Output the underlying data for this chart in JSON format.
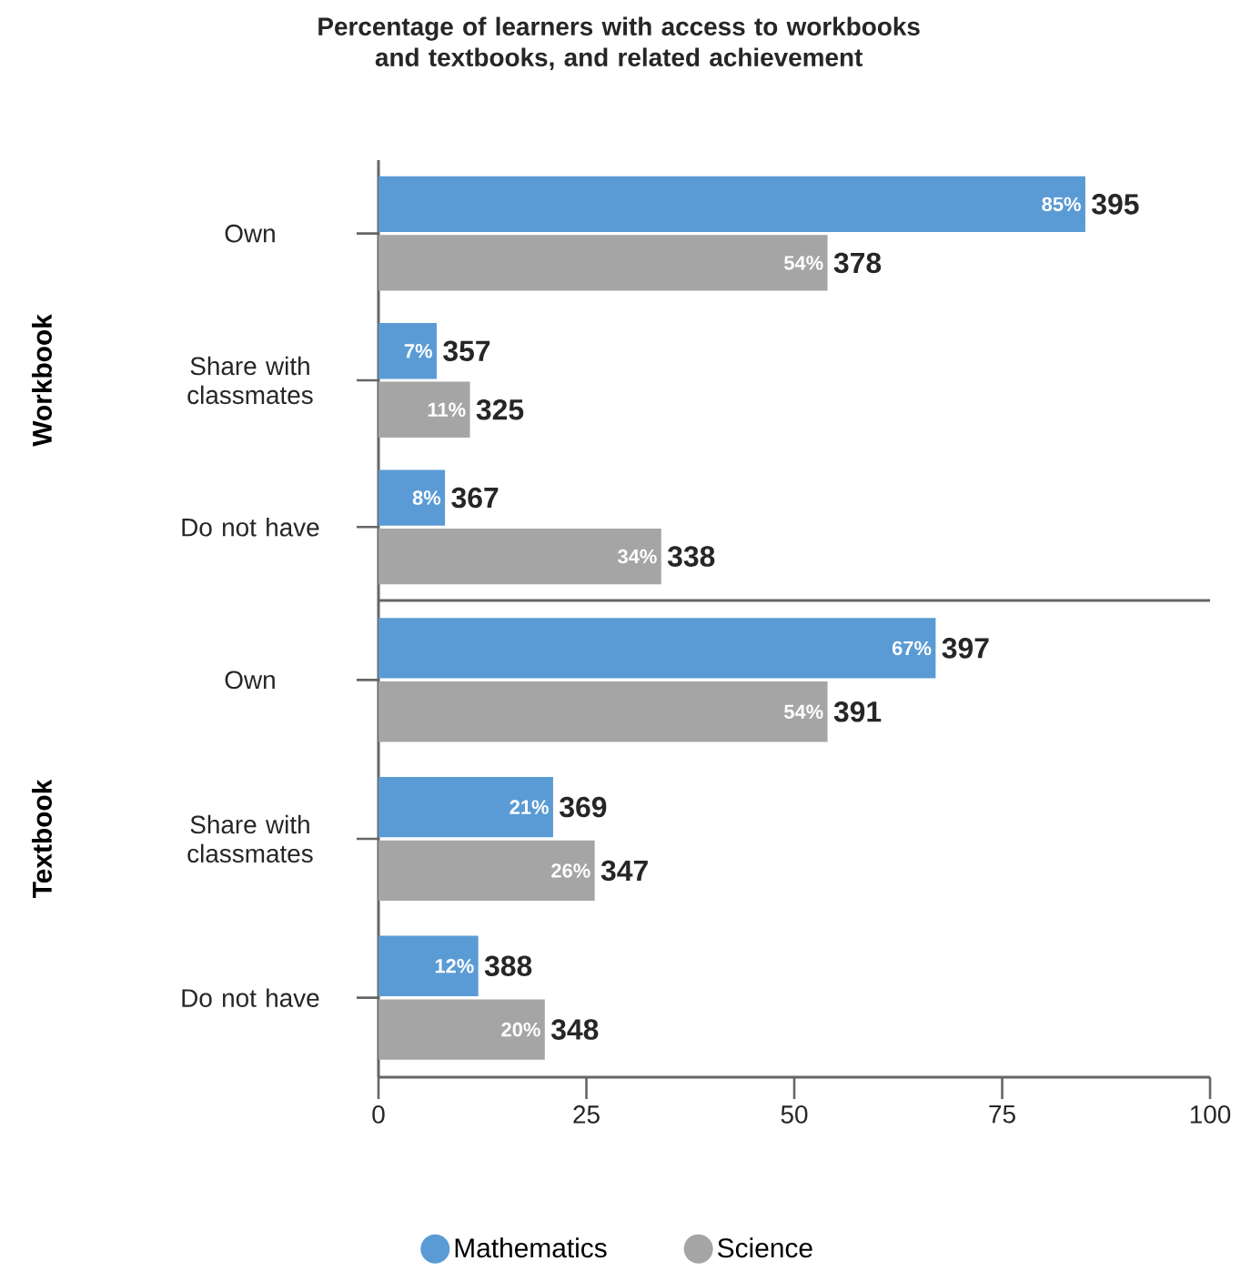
{
  "chart_data": [
    {
      "type": "bar",
      "orientation": "horizontal",
      "title": "Percentage of learners with access to workbooks and textbooks, and related achievement",
      "ylabel": "Workbook",
      "categories": [
        "Own",
        "Share with classmates",
        "Do not have"
      ],
      "xlim": [
        0,
        100
      ],
      "tick_labels": "y",
      "series": [
        {
          "color": "#5b9bd5",
          "values": [
            85,
            7,
            8
          ],
          "value_labels": [
            "85%",
            "7%",
            "8%"
          ]
        },
        {
          "color": "#a5a5a5",
          "values": [
            54,
            11,
            34
          ],
          "value_labels": [
            "54%",
            "11%",
            "34%"
          ]
        }
      ],
      "annotations": [
        {
          "text": "395",
          "x": 85,
          "y": "Own"
        },
        {
          "text": "378",
          "x": 54,
          "y": "Own"
        },
        {
          "text": "357",
          "x": 7,
          "y": "Share with classmates"
        },
        {
          "text": "325",
          "x": 11,
          "y": "Share with classmates"
        },
        {
          "text": "367",
          "x": 8,
          "y": "Do not have"
        },
        {
          "text": "338",
          "x": 34,
          "y": "Do not have"
        }
      ]
    },
    {
      "type": "bar",
      "orientation": "horizontal",
      "ylabel": "Textbook",
      "categories": [
        "Own",
        "Share with classmates",
        "Do not have"
      ],
      "xlim": [
        0,
        100
      ],
      "xticks": [
        0,
        25,
        50,
        75,
        100
      ],
      "legend": "bottom",
      "series": [
        {
          "name": "Mathematics",
          "color": "#5b9bd5",
          "values": [
            67,
            21,
            12
          ],
          "value_labels": [
            "67%",
            "21%",
            "12%"
          ]
        },
        {
          "name": "Science",
          "color": "#a5a5a5",
          "values": [
            54,
            26,
            20
          ],
          "value_labels": [
            "54%",
            "26%",
            "20%"
          ]
        }
      ],
      "annotations": [
        {
          "text": "397",
          "x": 67,
          "y": "Own"
        },
        {
          "text": "391",
          "x": 54,
          "y": "Own"
        },
        {
          "text": "369",
          "x": 21,
          "y": "Share with classmates"
        },
        {
          "text": "347",
          "x": 26,
          "y": "Share with classmates"
        },
        {
          "text": "388",
          "x": 12,
          "y": "Do not have"
        },
        {
          "text": "348",
          "x": 20,
          "y": "Do not have"
        }
      ]
    }
  ]
}
